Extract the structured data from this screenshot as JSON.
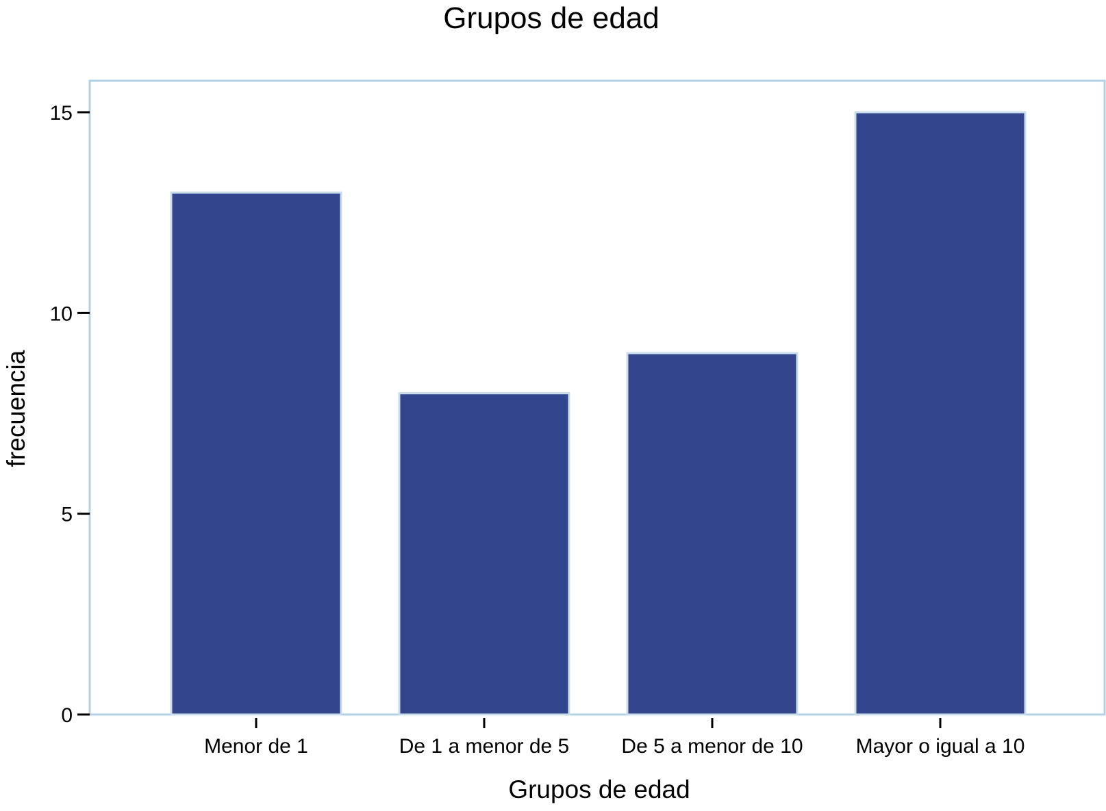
{
  "chart_data": {
    "type": "bar",
    "title": "Grupos de edad",
    "xlabel": "Grupos de edad",
    "ylabel": "frecuencia",
    "categories": [
      "Menor de 1",
      "De 1 a menor de 5",
      "De 5 a menor de 10",
      "Mayor o igual a 10"
    ],
    "values": [
      13,
      8,
      9,
      15
    ],
    "ylim": [
      0,
      15.8
    ],
    "yticks": [
      "0",
      "5",
      "10",
      "15"
    ],
    "grid": false,
    "legend": "none",
    "colors": {
      "bar_fill": "#33458c",
      "bar_edge": "#c9dcea",
      "frame": "#b3d0e4",
      "axis": "#000000"
    }
  }
}
